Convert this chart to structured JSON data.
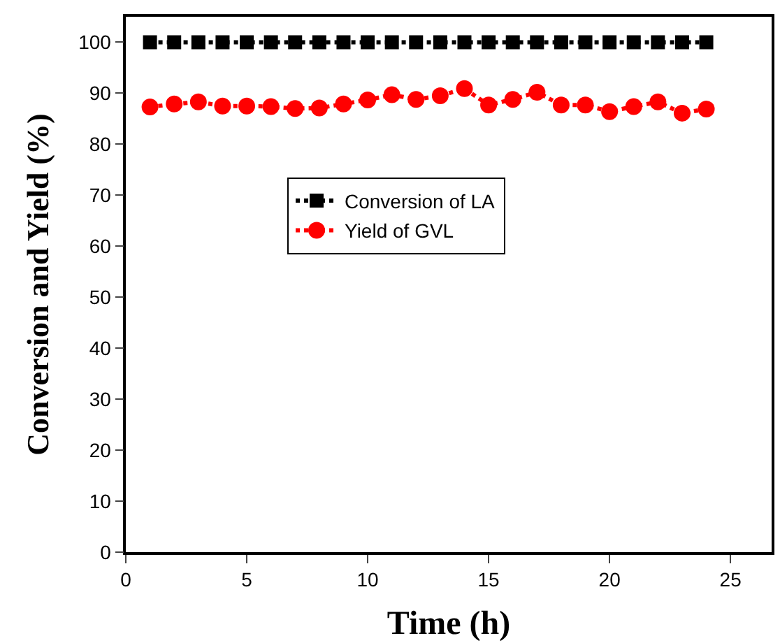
{
  "chart_data": {
    "type": "line",
    "xlabel": "Time (h)",
    "ylabel": "Conversion and Yield (%)",
    "x": [
      1,
      2,
      3,
      4,
      5,
      6,
      7,
      8,
      9,
      10,
      11,
      12,
      13,
      14,
      15,
      16,
      17,
      18,
      19,
      20,
      21,
      22,
      23,
      24
    ],
    "series": [
      {
        "name": "Conversion of LA",
        "color": "#000000",
        "marker": "square",
        "values": [
          100,
          100,
          100,
          100,
          100,
          100,
          100,
          100,
          100,
          100,
          100,
          100,
          100,
          100,
          100,
          100,
          100,
          100,
          100,
          100,
          100,
          100,
          100,
          100
        ]
      },
      {
        "name": "Yield of GVL",
        "color": "#ff0000",
        "marker": "circle",
        "values": [
          87.3,
          87.9,
          88.3,
          87.5,
          87.5,
          87.4,
          87.0,
          87.1,
          87.9,
          88.7,
          89.7,
          88.8,
          89.5,
          90.9,
          87.7,
          88.8,
          90.2,
          87.7,
          87.7,
          86.4,
          87.4,
          88.3,
          86.1,
          86.9
        ]
      }
    ],
    "line_style": "dotted",
    "xlim": [
      0,
      26.7
    ],
    "ylim": [
      0,
      105
    ],
    "xticks": [
      0,
      5,
      10,
      15,
      20,
      25
    ],
    "yticks": [
      0,
      10,
      20,
      30,
      40,
      50,
      60,
      70,
      80,
      90,
      100
    ],
    "legend": "top left"
  }
}
